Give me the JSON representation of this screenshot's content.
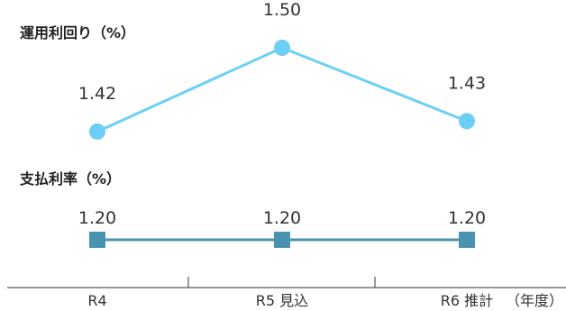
{
  "chart_data": {
    "type": "line",
    "categories": [
      "R4",
      "R5 見込",
      "R6 推計"
    ],
    "x_unit": "（年度）",
    "series": [
      {
        "name": "運用利回り（%）",
        "values": [
          1.42,
          1.5,
          1.43
        ],
        "value_labels": [
          "1.42",
          "1.50",
          "1.43"
        ],
        "marker": "circle",
        "color": "#6DCFF6"
      },
      {
        "name": "支払利率（%）",
        "values": [
          1.2,
          1.2,
          1.2
        ],
        "value_labels": [
          "1.20",
          "1.20",
          "1.20"
        ],
        "marker": "square",
        "color": "#4A93B0"
      }
    ],
    "grid": false,
    "legend": "none"
  }
}
